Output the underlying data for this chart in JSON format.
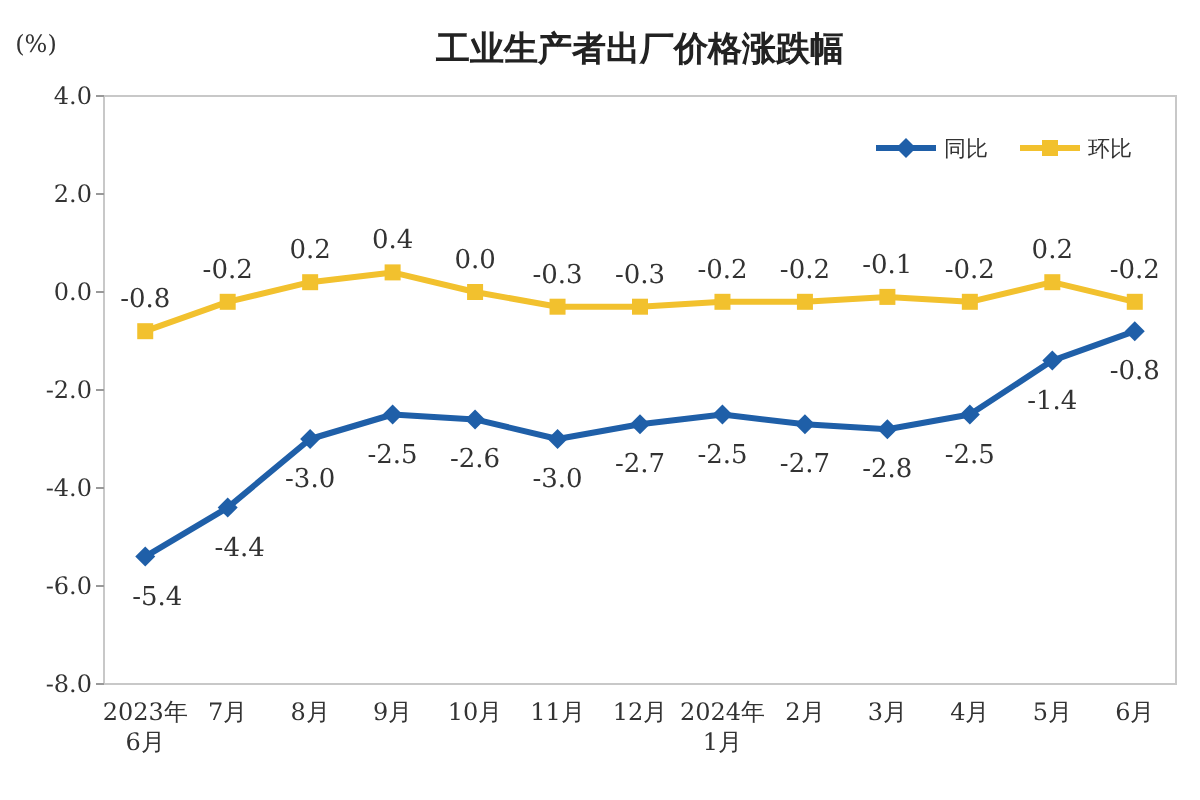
{
  "chart_data": {
    "type": "line",
    "title": "工业生产者出厂价格涨跌幅",
    "ylabel": "(%)",
    "categories": [
      "2023年\n6月",
      "7月",
      "8月",
      "9月",
      "10月",
      "11月",
      "12月",
      "2024年\n1月",
      "2月",
      "3月",
      "4月",
      "5月",
      "6月"
    ],
    "series": [
      {
        "name": "同比",
        "color": "#1f5fa8",
        "marker": "diamond",
        "values": [
          -5.4,
          -4.4,
          -3.0,
          -2.5,
          -2.6,
          -3.0,
          -2.7,
          -2.5,
          -2.7,
          -2.8,
          -2.5,
          -1.4,
          -0.8
        ],
        "value_labels": [
          "-5.4",
          "-4.4",
          "-3.0",
          "-2.5",
          "-2.6",
          "-3.0",
          "-2.7",
          "-2.5",
          "-2.7",
          "-2.8",
          "-2.5",
          "-1.4",
          "-0.8"
        ]
      },
      {
        "name": "环比",
        "color": "#f2c12e",
        "marker": "square",
        "values": [
          -0.8,
          -0.2,
          0.2,
          0.4,
          0.0,
          -0.3,
          -0.3,
          -0.2,
          -0.2,
          -0.1,
          -0.2,
          0.2,
          -0.2
        ],
        "value_labels": [
          "-0.8",
          "-0.2",
          "0.2",
          "0.4",
          "0.0",
          "-0.3",
          "-0.3",
          "-0.2",
          "-0.2",
          "-0.1",
          "-0.2",
          "0.2",
          "-0.2"
        ]
      }
    ],
    "ylim": [
      -8,
      4
    ],
    "yticks": [
      {
        "value": -8,
        "label": "-8.0"
      },
      {
        "value": -6,
        "label": "-6.0"
      },
      {
        "value": -4,
        "label": "-4.0"
      },
      {
        "value": -2,
        "label": "-2.0"
      },
      {
        "value": 0,
        "label": "0.0"
      },
      {
        "value": 2,
        "label": "2.0"
      },
      {
        "value": 4,
        "label": "4.0"
      }
    ],
    "grid": false,
    "legend": "top right"
  }
}
